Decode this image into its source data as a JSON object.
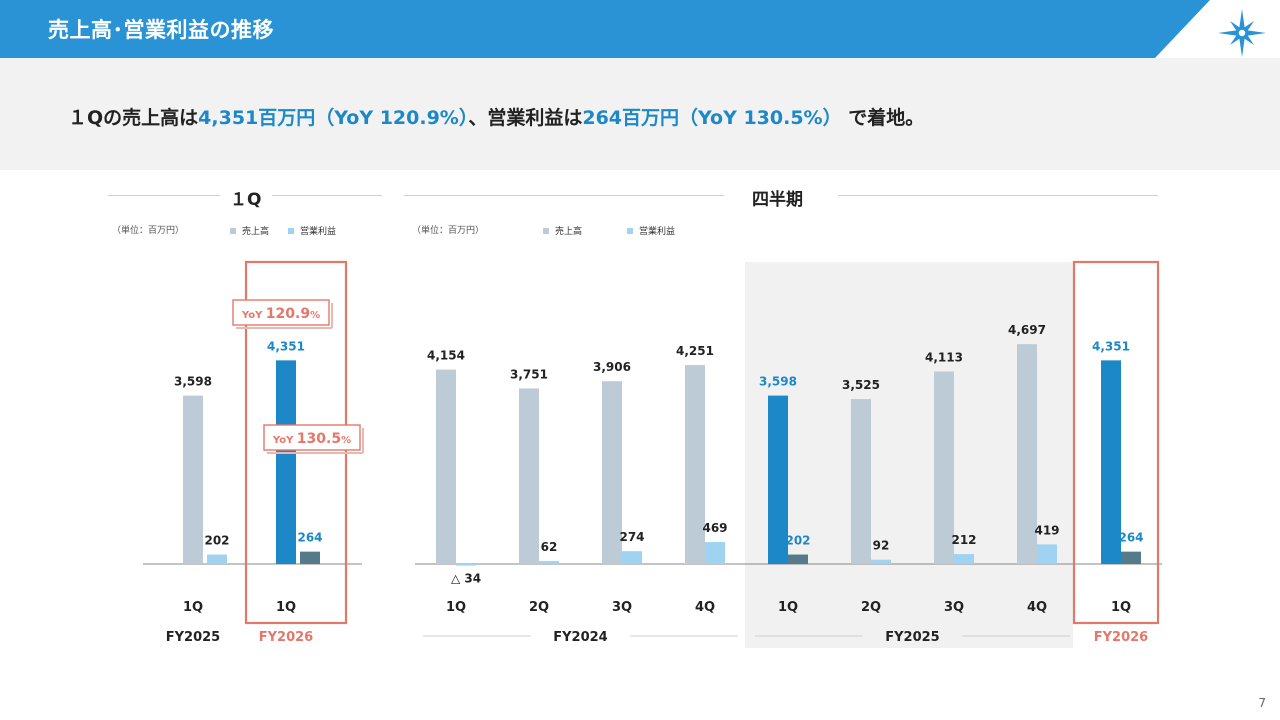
{
  "header": {
    "title": "売上高･営業利益の推移"
  },
  "summary": {
    "part1": "１Qの売上高は",
    "sales_value": "4,351百万円（YoY 120.9%）",
    "part2": "、営業利益は",
    "op_value": "264百万円（YoY 130.5%）",
    "part3": " で着地。"
  },
  "left_panel": {
    "title": "１Q",
    "unit": "（単位：百万円）",
    "legend": [
      "売上高",
      "営業利益"
    ],
    "yoy_sales": {
      "prefix": "YoY ",
      "value": "120.9",
      "suffix": "%"
    },
    "yoy_op": {
      "prefix": "YoY ",
      "value": "130.5",
      "suffix": "%"
    }
  },
  "right_panel": {
    "title": "四半期",
    "unit": "（単位：百万円）",
    "legend": [
      "売上高",
      "営業利益"
    ]
  },
  "colors": {
    "header": "#2a93d5",
    "sales_past": "#bccbd5",
    "op_past": "#9fd3f1",
    "sales_highlight": "#1c88c7",
    "op_highlight": "#557a8a",
    "accent_red": "#e4776a",
    "highlight_bg": "#f1f1f1"
  },
  "page_number": "7",
  "chart_data": [
    {
      "type": "bar",
      "title": "１Q",
      "categories": [
        "1Q",
        "1Q"
      ],
      "groups": [
        "FY2025",
        "FY2026"
      ],
      "series": [
        {
          "name": "売上高",
          "values": [
            3598,
            4351
          ],
          "labels": [
            "3,598",
            "4,351"
          ]
        },
        {
          "name": "営業利益",
          "values": [
            202,
            264
          ],
          "labels": [
            "202",
            "264"
          ]
        }
      ]
    },
    {
      "type": "bar",
      "title": "四半期",
      "categories": [
        "1Q",
        "2Q",
        "3Q",
        "4Q",
        "1Q",
        "2Q",
        "3Q",
        "4Q",
        "1Q"
      ],
      "groups": [
        {
          "label": "FY2024",
          "count": 4
        },
        {
          "label": "FY2025",
          "count": 4
        },
        {
          "label": "FY2026",
          "count": 1
        }
      ],
      "series": [
        {
          "name": "売上高",
          "values": [
            4154,
            3751,
            3906,
            4251,
            3598,
            3525,
            4113,
            4697,
            4351
          ],
          "labels": [
            "4,154",
            "3,751",
            "3,906",
            "4,251",
            "3,598",
            "3,525",
            "4,113",
            "4,697",
            "4,351"
          ]
        },
        {
          "name": "営業利益",
          "values": [
            -34,
            62,
            274,
            469,
            202,
            92,
            212,
            419,
            264
          ],
          "labels": [
            "△ 34",
            "62",
            "274",
            "469",
            "202",
            "92",
            "212",
            "419",
            "264"
          ]
        }
      ]
    }
  ]
}
